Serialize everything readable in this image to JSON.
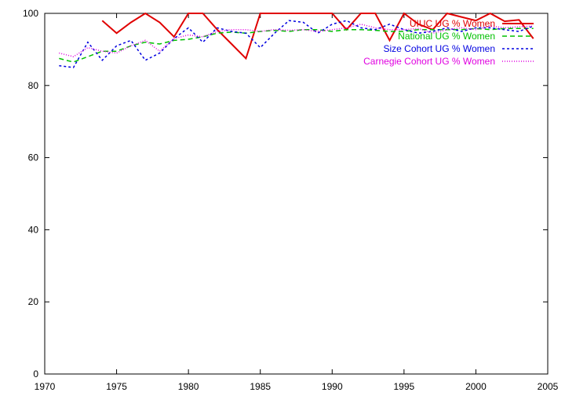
{
  "chart_data": {
    "type": "line",
    "title": "",
    "xlabel": "",
    "ylabel": "",
    "xlim": [
      1970,
      2005
    ],
    "ylim": [
      0,
      100
    ],
    "xticks": [
      1970,
      1975,
      1980,
      1985,
      1990,
      1995,
      2000,
      2005
    ],
    "yticks": [
      0,
      20,
      40,
      60,
      80,
      100
    ],
    "grid": false,
    "legend_position": "top-right",
    "series": [
      {
        "name": "UIUC UG % Women",
        "color": "#e00000",
        "dash": "solid",
        "x": [
          1974,
          1975,
          1976,
          1977,
          1978,
          1979,
          1980,
          1981,
          1982,
          1983,
          1984,
          1985,
          1986,
          1987,
          1988,
          1989,
          1990,
          1991,
          1992,
          1993,
          1994,
          1995,
          1996,
          1997,
          1998,
          1999,
          2000,
          2001,
          2002,
          2003,
          2004
        ],
        "y": [
          98,
          94.5,
          97.5,
          100,
          97.5,
          93.5,
          100,
          100,
          95.5,
          91.5,
          87.5,
          100,
          100,
          100,
          100,
          100,
          100,
          95.5,
          100,
          100,
          92.5,
          100,
          97,
          95.5,
          100,
          99,
          98,
          100,
          97.8,
          98.2,
          93
        ]
      },
      {
        "name": "National UG % Women",
        "color": "#00c000",
        "dash": "6,4",
        "x": [
          1971,
          1972,
          1973,
          1974,
          1975,
          1976,
          1977,
          1978,
          1979,
          1980,
          1981,
          1982,
          1983,
          1984,
          1985,
          1986,
          1987,
          1988,
          1989,
          1990,
          1991,
          1992,
          1993,
          1994,
          1995,
          1996,
          1997,
          1998,
          1999,
          2000,
          2001,
          2002,
          2003,
          2004
        ],
        "y": [
          87.5,
          86.5,
          88,
          89.5,
          89.5,
          91,
          92,
          91.5,
          92.5,
          92.8,
          93.5,
          94.5,
          94.8,
          94.5,
          95,
          95.3,
          95,
          95.5,
          95.5,
          95,
          95.5,
          95.5,
          95.3,
          95,
          95,
          95.5,
          95.5,
          95.5,
          95.5,
          95.8,
          95.5,
          95.8,
          95.8,
          95.8
        ]
      },
      {
        "name": "Size Cohort UG % Women",
        "color": "#0000e0",
        "dash": "3,3",
        "x": [
          1971,
          1972,
          1973,
          1974,
          1975,
          1976,
          1977,
          1978,
          1979,
          1980,
          1981,
          1982,
          1983,
          1984,
          1985,
          1986,
          1987,
          1988,
          1989,
          1990,
          1991,
          1992,
          1993,
          1994,
          1995,
          1996,
          1997,
          1998,
          1999,
          2000,
          2001,
          2002,
          2003,
          2004
        ],
        "y": [
          85.5,
          85,
          92,
          87,
          91,
          92.5,
          87,
          89,
          93,
          96,
          92,
          96,
          95,
          94.5,
          90.5,
          94.5,
          98,
          97.5,
          94.5,
          97,
          98,
          96,
          95.5,
          97,
          95.5,
          94.5,
          95,
          96,
          95,
          96,
          96,
          95.5,
          95,
          96.5
        ]
      },
      {
        "name": "Carnegie Cohort UG % Women",
        "color": "#e000e0",
        "dash": "1,2",
        "x": [
          1971,
          1972,
          1973,
          1974,
          1975,
          1976,
          1977,
          1978,
          1979,
          1980,
          1981,
          1982,
          1983,
          1984,
          1985,
          1986,
          1987,
          1988,
          1989,
          1990,
          1991,
          1992,
          1993,
          1994,
          1995,
          1996,
          1997,
          1998,
          1999,
          2000,
          2001,
          2002,
          2003,
          2004
        ],
        "y": [
          89,
          88,
          90.5,
          89.5,
          89,
          91,
          92.5,
          89.5,
          93,
          94,
          93.5,
          95,
          95.5,
          95.5,
          95,
          95.5,
          95.3,
          95.5,
          95,
          95.5,
          96,
          97,
          96,
          95.5,
          95.5,
          95.8,
          94.5,
          95.5,
          96,
          95.5,
          96.5,
          96,
          96.3,
          96.5
        ]
      }
    ]
  }
}
